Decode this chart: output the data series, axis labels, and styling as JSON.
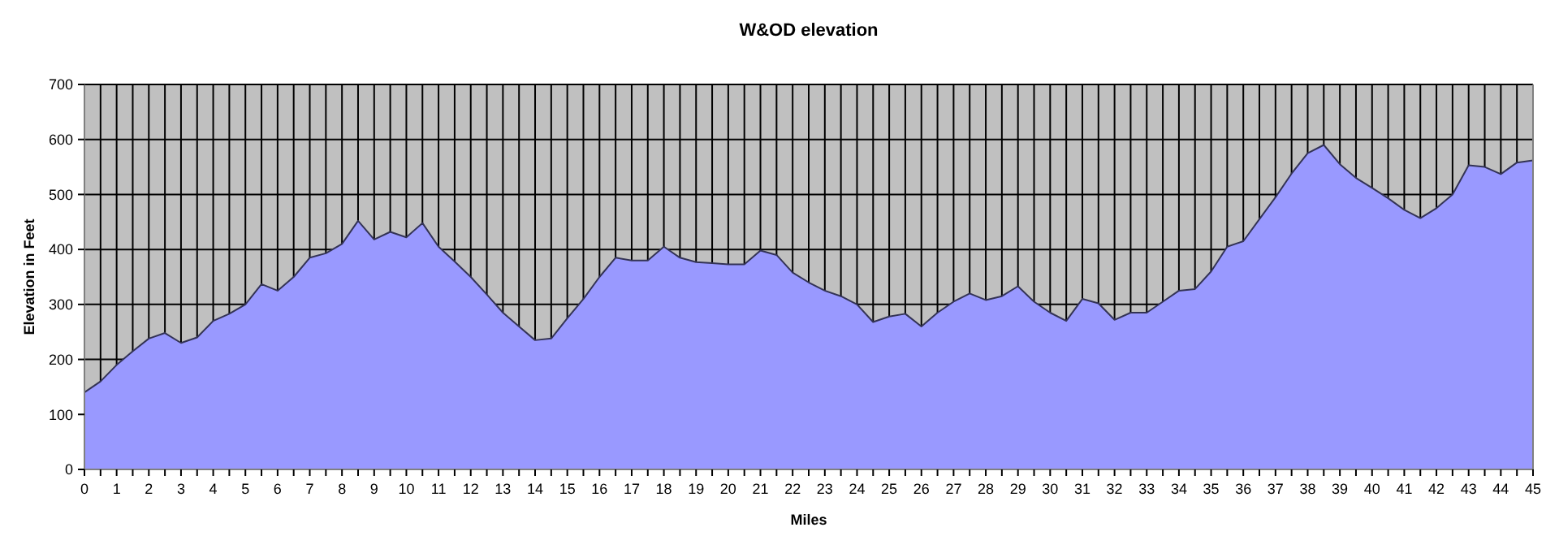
{
  "chart_data": {
    "type": "area",
    "title": "W&OD elevation",
    "xlabel": "Miles",
    "ylabel": "Elevation in Feet",
    "x": [
      0,
      0.5,
      1,
      1.5,
      2,
      2.5,
      3,
      3.5,
      4,
      4.5,
      5,
      5.5,
      6,
      6.5,
      7,
      7.5,
      8,
      8.5,
      9,
      9.5,
      10,
      10.5,
      11,
      11.5,
      12,
      12.5,
      13,
      13.5,
      14,
      14.5,
      15,
      15.5,
      16,
      16.5,
      17,
      17.5,
      18,
      18.5,
      19,
      19.5,
      20,
      20.5,
      21,
      21.5,
      22,
      22.5,
      23,
      23.5,
      24,
      24.5,
      25,
      25.5,
      26,
      26.5,
      27,
      27.5,
      28,
      28.5,
      29,
      29.5,
      30,
      30.5,
      31,
      31.5,
      32,
      32.5,
      33,
      33.5,
      34,
      34.5,
      35,
      35.5,
      36,
      36.5,
      37,
      37.5,
      38,
      38.5,
      39,
      39.5,
      40,
      40.5,
      41,
      41.5,
      42,
      42.5,
      43,
      43.5,
      44,
      44.5,
      45
    ],
    "series": [
      {
        "color": "#9999ff",
        "values": [
          140,
          160,
          190,
          215,
          238,
          248,
          230,
          240,
          270,
          283,
          300,
          337,
          325,
          350,
          385,
          393,
          410,
          452,
          418,
          432,
          422,
          448,
          405,
          378,
          350,
          318,
          285,
          260,
          235,
          238,
          275,
          310,
          350,
          385,
          380,
          380,
          405,
          385,
          377,
          375,
          373,
          373,
          398,
          390,
          358,
          340,
          325,
          315,
          300,
          268,
          278,
          283,
          260,
          285,
          305,
          320,
          308,
          315,
          333,
          305,
          285,
          270,
          310,
          302,
          272,
          285,
          285,
          305,
          325,
          328,
          360,
          405,
          415,
          455,
          495,
          538,
          575,
          590,
          555,
          530,
          512,
          493,
          472,
          457,
          475,
          500,
          553,
          550,
          537,
          558,
          562
        ]
      }
    ],
    "xlim": [
      0,
      45
    ],
    "ylim": [
      0,
      700
    ],
    "xticks": [
      0,
      {
        "value": 0.5,
        "label": null
      },
      1,
      {
        "value": 1.5,
        "label": null
      },
      2,
      {
        "value": 2.5,
        "label": null
      },
      3,
      {
        "value": 3.5,
        "label": null
      },
      4,
      {
        "value": 4.5,
        "label": null
      },
      5,
      {
        "value": 5.5,
        "label": null
      },
      6,
      {
        "value": 6.5,
        "label": null
      },
      7,
      {
        "value": 7.5,
        "label": null
      },
      8,
      {
        "value": 8.5,
        "label": null
      },
      9,
      {
        "value": 9.5,
        "label": null
      },
      10,
      {
        "value": 10.5,
        "label": null
      },
      11,
      {
        "value": 11.5,
        "label": null
      },
      12,
      {
        "value": 12.5,
        "label": null
      },
      13,
      {
        "value": 13.5,
        "label": null
      },
      14,
      {
        "value": 14.5,
        "label": null
      },
      15,
      {
        "value": 15.5,
        "label": null
      },
      16,
      {
        "value": 16.5,
        "label": null
      },
      17,
      {
        "value": 17.5,
        "label": null
      },
      18,
      {
        "value": 18.5,
        "label": null
      },
      19,
      {
        "value": 19.5,
        "label": null
      },
      20,
      {
        "value": 20.5,
        "label": null
      },
      21,
      {
        "value": 21.5,
        "label": null
      },
      22,
      {
        "value": 22.5,
        "label": null
      },
      23,
      {
        "value": 23.5,
        "label": null
      },
      24,
      {
        "value": 24.5,
        "label": null
      },
      25,
      {
        "value": 25.5,
        "label": null
      },
      26,
      {
        "value": 26.5,
        "label": null
      },
      27,
      {
        "value": 27.5,
        "label": null
      },
      28,
      {
        "value": 28.5,
        "label": null
      },
      29,
      {
        "value": 29.5,
        "label": null
      },
      30,
      {
        "value": 30.5,
        "label": null
      },
      31,
      {
        "value": 31.5,
        "label": null
      },
      32,
      {
        "value": 32.5,
        "label": null
      },
      33,
      {
        "value": 33.5,
        "label": null
      },
      34,
      {
        "value": 34.5,
        "label": null
      },
      35,
      {
        "value": 35.5,
        "label": null
      },
      36,
      {
        "value": 36.5,
        "label": null
      },
      37,
      {
        "value": 37.5,
        "label": null
      },
      38,
      {
        "value": 38.5,
        "label": null
      },
      39,
      {
        "value": 39.5,
        "label": null
      },
      40,
      {
        "value": 40.5,
        "label": null
      },
      41,
      {
        "value": 41.5,
        "label": null
      },
      42,
      {
        "value": 42.5,
        "label": null
      },
      43,
      {
        "value": 43.5,
        "label": null
      },
      44,
      {
        "value": 44.5,
        "label": null
      },
      45
    ],
    "yticks": [
      0,
      100,
      200,
      300,
      400,
      500,
      600,
      700
    ],
    "grid": true
  }
}
